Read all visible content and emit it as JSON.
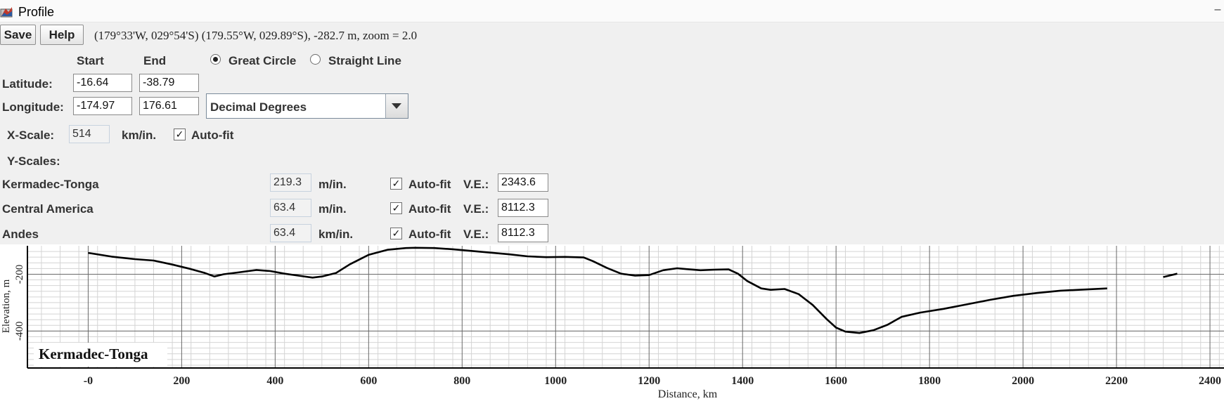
{
  "window": {
    "title": "Profile",
    "minimize_glyph": "–",
    "icon": "profile-app-icon"
  },
  "toolbar": {
    "save_label": "Save",
    "help_label": "Help",
    "coords_text": "(179°33'W, 029°54'S) (179.55°W, 029.89°S), -282.7 m, zoom = 2.0"
  },
  "path": {
    "start_header": "Start",
    "end_header": "End",
    "great_circle_label": "Great Circle",
    "straight_line_label": "Straight Line",
    "great_circle_selected": true,
    "latitude_label": "Latitude:",
    "longitude_label": "Longitude:",
    "lat_start": "-16.64",
    "lat_end": "-38.79",
    "lon_start": "-174.97",
    "lon_end": "176.61",
    "format_selected": "Decimal Degrees"
  },
  "xscale": {
    "label": "X-Scale:",
    "value": "514",
    "unit": "km/in.",
    "autofit_label": "Auto-fit",
    "autofit_checked": true
  },
  "yscales": {
    "header": "Y-Scales:",
    "autofit_label": "Auto-fit",
    "ve_label": "V.E.:",
    "rows": [
      {
        "name": "Kermadec-Tonga",
        "scale": "219.3",
        "unit": "m/in.",
        "autofit": true,
        "ve": "2343.6"
      },
      {
        "name": "Central America",
        "scale": "63.4",
        "unit": "m/in.",
        "autofit": true,
        "ve": "8112.3"
      },
      {
        "name": "Andes",
        "scale": "63.4",
        "unit": "km/in.",
        "autofit": true,
        "ve": "8112.3"
      }
    ]
  },
  "chart_data": {
    "type": "line",
    "title": "Kermadec-Tonga",
    "xlabel": "Distance, km",
    "ylabel": "Elevation, m",
    "xlim": [
      -130,
      2430
    ],
    "ylim": [
      -530,
      -100
    ],
    "x_ticks": [
      0,
      200,
      400,
      600,
      800,
      1000,
      1200,
      1400,
      1600,
      1800,
      2000,
      2200,
      2400
    ],
    "x_tick_labels": [
      "-0",
      "200",
      "400",
      "600",
      "800",
      "1000",
      "1200",
      "1400",
      "1600",
      "1800",
      "2000",
      "2200",
      "2400"
    ],
    "y_ticks": [
      -200,
      -400
    ],
    "y_tick_labels": [
      "-200",
      "-400"
    ],
    "grid": true,
    "line_color": "#000000",
    "series": [
      {
        "x": [
          0,
          50,
          100,
          140,
          180,
          220,
          250,
          270,
          290,
          320,
          360,
          390,
          420,
          450,
          480,
          500,
          530,
          560,
          600,
          640,
          680,
          700,
          740,
          780,
          820,
          860,
          900,
          940,
          980,
          1020,
          1060,
          1080,
          1110,
          1140,
          1170,
          1200,
          1230,
          1260,
          1280,
          1310,
          1340,
          1370,
          1390,
          1410,
          1440,
          1460,
          1490,
          1520,
          1550,
          1580,
          1600,
          1620,
          1650,
          1680,
          1710,
          1740,
          1780,
          1830,
          1880,
          1930,
          1980,
          2030,
          2080,
          2130,
          2180
        ],
        "y": [
          -125,
          -138,
          -147,
          -152,
          -166,
          -182,
          -196,
          -208,
          -200,
          -194,
          -185,
          -189,
          -198,
          -205,
          -212,
          -208,
          -196,
          -165,
          -132,
          -114,
          -108,
          -107,
          -108,
          -112,
          -118,
          -124,
          -130,
          -137,
          -140,
          -139,
          -141,
          -154,
          -178,
          -198,
          -205,
          -203,
          -186,
          -179,
          -182,
          -186,
          -184,
          -183,
          -198,
          -224,
          -250,
          -255,
          -252,
          -270,
          -308,
          -358,
          -388,
          -402,
          -407,
          -397,
          -378,
          -350,
          -335,
          -322,
          -306,
          -290,
          -276,
          -266,
          -258,
          -254,
          -250
        ]
      },
      {
        "x": [
          2300,
          2330
        ],
        "y": [
          -210,
          -198
        ]
      }
    ]
  }
}
